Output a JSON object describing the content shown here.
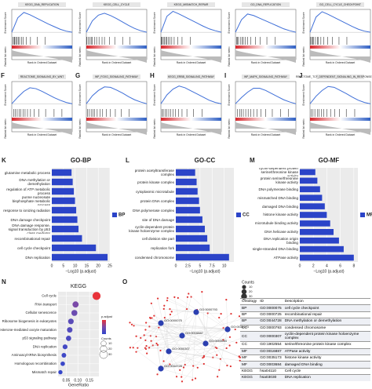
{
  "gsea_labels": {
    "y_label": "Enrichment Score",
    "metric_label": "Ranked list metric",
    "x_label": "Rank in Ordered Dataset"
  },
  "chart_data": [
    {
      "type": "gsea",
      "title": "KEGG_DNA_REPLICATION",
      "x": [
        0,
        10,
        20,
        30,
        40,
        50,
        60,
        70,
        80,
        90,
        100
      ],
      "values": [
        0,
        0.38,
        0.52,
        0.46,
        0.38,
        0.3,
        0.22,
        0.15,
        0.08,
        0.03,
        0
      ],
      "hits": [
        2,
        4,
        5,
        7,
        9,
        11,
        13,
        16,
        19,
        24,
        31,
        42,
        55
      ],
      "xlim": [
        0,
        100
      ],
      "ylim": [
        -0.1,
        0.6
      ],
      "color": "#3f6fd8"
    },
    {
      "type": "gsea",
      "title": "KEGG_CELL_CYCLE",
      "x": [
        0,
        10,
        20,
        30,
        40,
        50,
        60,
        70,
        80,
        90,
        100
      ],
      "values": [
        0,
        0.3,
        0.45,
        0.5,
        0.44,
        0.36,
        0.27,
        0.18,
        0.1,
        0.04,
        0
      ],
      "hits": [
        1,
        3,
        6,
        8,
        10,
        14,
        17,
        21,
        26,
        30,
        38,
        47,
        60,
        72
      ],
      "xlim": [
        0,
        100
      ],
      "ylim": [
        -0.1,
        0.6
      ],
      "color": "#3f6fd8"
    },
    {
      "type": "gsea",
      "title": "KEGG_MISMATCH_REPAIR",
      "x": [
        0,
        10,
        20,
        30,
        40,
        50,
        60,
        70,
        80,
        90,
        100
      ],
      "values": [
        0,
        0.42,
        0.55,
        0.48,
        0.4,
        0.32,
        0.24,
        0.16,
        0.09,
        0.04,
        0
      ],
      "hits": [
        1,
        2,
        4,
        6,
        8,
        10,
        12,
        15,
        18,
        22,
        28,
        35,
        49
      ],
      "xlim": [
        0,
        100
      ],
      "ylim": [
        -0.1,
        0.6
      ],
      "color": "#3f6fd8"
    },
    {
      "type": "gsea",
      "title": "GO_DNA_REPLICATION",
      "x": [
        0,
        10,
        20,
        30,
        40,
        50,
        60,
        70,
        80,
        90,
        100
      ],
      "values": [
        0,
        0.33,
        0.48,
        0.44,
        0.37,
        0.3,
        0.23,
        0.16,
        0.09,
        0.04,
        0
      ],
      "hits": [
        2,
        3,
        5,
        8,
        11,
        13,
        16,
        20,
        25,
        33,
        41,
        52,
        66
      ],
      "xlim": [
        0,
        100
      ],
      "ylim": [
        -0.1,
        0.6
      ],
      "color": "#3f6fd8"
    },
    {
      "type": "gsea",
      "title": "GO_CELL_CYCLE_CHECKPOINT",
      "x": [
        0,
        10,
        20,
        30,
        40,
        50,
        60,
        70,
        80,
        90,
        100
      ],
      "values": [
        0,
        0.4,
        0.54,
        0.47,
        0.39,
        0.31,
        0.23,
        0.15,
        0.08,
        0.03,
        0
      ],
      "hits": [
        1,
        3,
        4,
        6,
        9,
        12,
        14,
        18,
        23,
        29,
        37,
        48,
        61
      ],
      "xlim": [
        0,
        100
      ],
      "ylim": [
        -0.1,
        0.6
      ],
      "color": "#3f6fd8"
    },
    {
      "type": "gsea",
      "panel": "F",
      "title": "REACTOME_SIGNALING_BY_WNT",
      "x": [
        0,
        10,
        20,
        30,
        40,
        50,
        60,
        70,
        80,
        90,
        100
      ],
      "values": [
        0,
        0.15,
        0.28,
        0.36,
        0.34,
        0.28,
        0.21,
        0.14,
        0.08,
        0.03,
        0
      ],
      "hits": [
        3,
        6,
        9,
        12,
        15,
        19,
        22,
        26,
        31,
        37,
        45,
        56,
        70,
        83
      ],
      "xlim": [
        0,
        100
      ],
      "ylim": [
        -0.1,
        0.5
      ],
      "color": "#3f6fd8"
    },
    {
      "type": "gsea",
      "panel": "G",
      "title": "WP_FOXO_SIGNALING_PATHWAY",
      "x": [
        0,
        10,
        20,
        30,
        40,
        50,
        60,
        70,
        80,
        90,
        100
      ],
      "values": [
        0,
        0.18,
        0.3,
        0.38,
        0.37,
        0.31,
        0.24,
        0.16,
        0.09,
        0.04,
        0
      ],
      "hits": [
        2,
        5,
        8,
        11,
        14,
        18,
        23,
        27,
        33,
        40,
        48,
        58,
        71
      ],
      "xlim": [
        0,
        100
      ],
      "ylim": [
        -0.1,
        0.5
      ],
      "color": "#3f6fd8"
    },
    {
      "type": "gsea",
      "panel": "H",
      "title": "KEGG_ERBB_SIGNALING_PATHWAY",
      "x": [
        0,
        10,
        20,
        30,
        40,
        50,
        60,
        70,
        80,
        90,
        100
      ],
      "values": [
        0,
        0.2,
        0.33,
        0.4,
        0.36,
        0.29,
        0.22,
        0.15,
        0.08,
        0.03,
        0
      ],
      "hits": [
        2,
        4,
        7,
        10,
        13,
        16,
        20,
        24,
        29,
        35,
        43,
        54,
        68
      ],
      "xlim": [
        0,
        100
      ],
      "ylim": [
        -0.1,
        0.5
      ],
      "color": "#3f6fd8"
    },
    {
      "type": "gsea",
      "panel": "I",
      "title": "WP_MAPK_SIGNALING_PATHWAY",
      "x": [
        0,
        10,
        20,
        30,
        40,
        50,
        60,
        70,
        80,
        90,
        100
      ],
      "values": [
        0,
        0.14,
        0.26,
        0.35,
        0.35,
        0.3,
        0.23,
        0.16,
        0.09,
        0.04,
        0
      ],
      "hits": [
        3,
        7,
        10,
        13,
        17,
        21,
        25,
        30,
        36,
        42,
        50,
        61,
        75,
        88
      ],
      "xlim": [
        0,
        100
      ],
      "ylim": [
        -0.1,
        0.5
      ],
      "color": "#3f6fd8"
    },
    {
      "type": "gsea",
      "panel": "J",
      "title": "REACTOME_TCF_DEPENDENT_SIGNALING_IN_RESPONSE_TO_WNT",
      "x": [
        0,
        10,
        20,
        30,
        40,
        50,
        60,
        70,
        80,
        90,
        100
      ],
      "values": [
        0,
        0.17,
        0.3,
        0.39,
        0.37,
        0.3,
        0.23,
        0.15,
        0.08,
        0.03,
        0
      ],
      "hits": [
        2,
        5,
        8,
        12,
        15,
        19,
        23,
        28,
        34,
        41,
        49,
        60,
        74
      ],
      "xlim": [
        0,
        100
      ],
      "ylim": [
        -0.1,
        0.5
      ],
      "color": "#3f6fd8"
    },
    {
      "type": "hbar",
      "panel": "K",
      "title": "GO-BP",
      "categories": [
        "glutamine metabolic process",
        "DNA methylation or demethylation",
        "regulation of ATP metabolic process",
        "purine nucleoside bisphosphate metabolic process",
        "response to ionizing radiation",
        "DNA damage checkpoint",
        "DNA damage response, signal transduction by p53 class mediator",
        "recombinational repair",
        "cell cycle checkpoint",
        "DNA replication"
      ],
      "series": [
        {
          "name": "BP",
          "color": "#2b44c8",
          "values": [
            8.5,
            9,
            9.5,
            10,
            10.5,
            11,
            11.5,
            13,
            19,
            24
          ]
        }
      ],
      "xlim": [
        0,
        25
      ],
      "xticks": [
        0,
        5,
        10,
        15,
        20,
        25
      ],
      "x_label": "−Log10 (p.adjust)"
    },
    {
      "type": "hbar",
      "panel": "L",
      "title": "GO-CC",
      "categories": [
        "protein acetyltransferase complex",
        "protein kinase complex",
        "cytoplasmic microtubule",
        "protein DNA complex",
        "DNA polymerase complex",
        "site of DNA damage",
        "cyclin-dependent protein kinase holoenzyme complex",
        "cell division site part",
        "replication fork",
        "condensed chromosome"
      ],
      "series": [
        {
          "name": "CC",
          "color": "#2b44c8",
          "values": [
            4,
            4.3,
            4.5,
            4.8,
            5,
            5.5,
            6,
            6.5,
            7,
            11
          ]
        }
      ],
      "xlim": [
        0,
        12
      ],
      "xticks": [
        0,
        2.5,
        5,
        7.5,
        10
      ],
      "x_label": "−Log10 (p.adjust)"
    },
    {
      "type": "hbar",
      "panel": "M",
      "title": "GO-MF",
      "categories": [
        "cyclin-dependent protein serine/threonine kinase activity",
        "protein serine/threonine kinase activity",
        "DNA polymerase binding",
        "mismatched DNA binding",
        "damaged DNA binding",
        "histone kinase activity",
        "microtubule binding activity",
        "DNA helicase activity",
        "DNA replication origin binding",
        "single-stranded DNA binding",
        "ATPase activity"
      ],
      "series": [
        {
          "name": "MF",
          "color": "#2b44c8",
          "values": [
            2.3,
            2.6,
            3,
            3.3,
            3.7,
            4,
            4.5,
            5,
            5.8,
            6.5,
            8
          ]
        }
      ],
      "xlim": [
        0,
        8.6
      ],
      "xticks": [
        0,
        2,
        4,
        6,
        8
      ],
      "x_label": "−Log10 (p.adjust)"
    },
    {
      "type": "dot",
      "panel": "N",
      "title": "KEGG",
      "categories": [
        "Cell cycle",
        "RNA transport",
        "Cellular senescence",
        "Ribosome biogenesis in eukaryotes",
        "Progesterone-mediated oocyte maturation",
        "p53 signaling pathway",
        "DNA replication",
        "Aminoacyl-tRNA biosynthesis",
        "Homologous recombination",
        "Mismatch repair"
      ],
      "values": [
        0.18,
        0.09,
        0.085,
        0.07,
        0.065,
        0.06,
        0.045,
        0.04,
        0.035,
        0.025
      ],
      "sizes": [
        30,
        15,
        14,
        12,
        11,
        10,
        8,
        7,
        6,
        5
      ],
      "colors": [
        "#e8333a",
        "#7a4aa8",
        "#6b4cb0",
        "#5a4bb8",
        "#534bbd",
        "#4c4ac0",
        "#4449c4",
        "#3f48c6",
        "#3a47c8",
        "#3546ca"
      ],
      "xlim": [
        0.015,
        0.19
      ],
      "xticks": [
        0.05,
        {
          "value": 0.1,
          "label": "0.10"
        },
        0.15
      ],
      "x_label": "GeneRatio",
      "color_legend_title": "p.adjust",
      "size_legend_title": "Counts",
      "size_legend": [
        10,
        20,
        30
      ]
    }
  ],
  "network": {
    "panel": "O",
    "size_legend_title": "Counts",
    "size_legend": [
      10,
      20,
      30
    ],
    "nodes": [
      "GO:0000075",
      "GO:0000793",
      "GO:0035173",
      "GO:0003684",
      "GO:0016887",
      "GO:0000307",
      "GO:0044728"
    ]
  },
  "table": {
    "columns": [
      "Ontology",
      "ID",
      "Description"
    ],
    "rows": [
      [
        "BP",
        "GO:0000075",
        "cell cycle checkpoint"
      ],
      [
        "BP",
        "GO:0000725",
        "recombinational repair"
      ],
      [
        "BP",
        "GO:0044728",
        "DNA methylation or demethylation"
      ],
      [
        "CC",
        "GO:0000793",
        "condensed chromosome"
      ],
      [
        "CC",
        "GO:0000307",
        "cyclin-dependent protein kinase holoenzyme complex"
      ],
      [
        "CC",
        "GO:1902554",
        "serine/threonine protein kinase complex"
      ],
      [
        "MF",
        "GO:0016887",
        "ATPase activity"
      ],
      [
        "MF",
        "GO:0035173",
        "histone kinase activity"
      ],
      [
        "MF",
        "GO:0003684",
        "damaged DNA binding"
      ],
      [
        "KEGG",
        "hsa04110",
        "Cell cycle"
      ],
      [
        "KEGG",
        "hsa03030",
        "DNA replication"
      ]
    ]
  }
}
